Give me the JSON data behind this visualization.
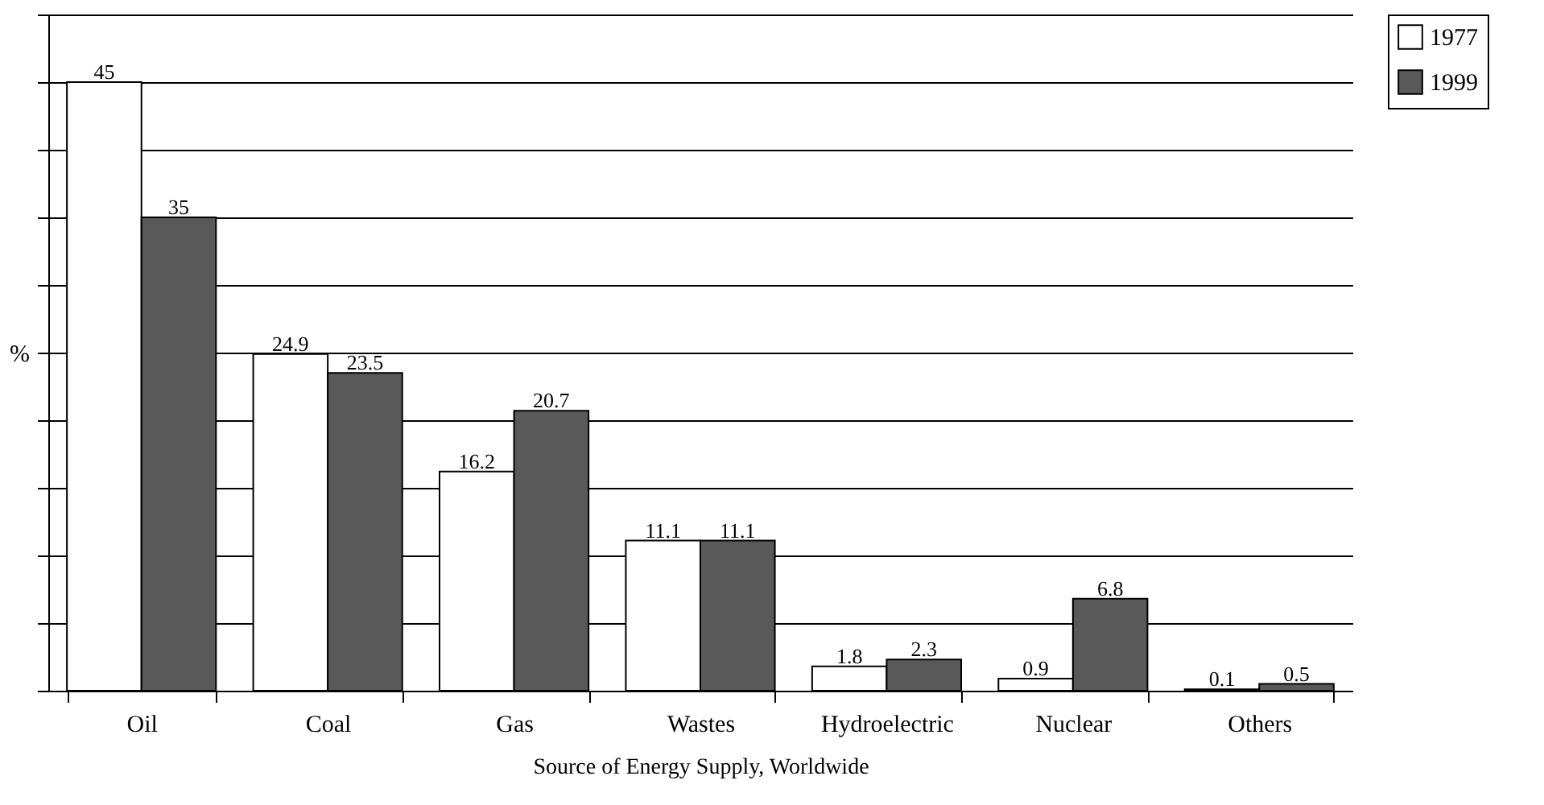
{
  "chart_data": {
    "type": "bar",
    "xlabel": "Source of Energy Supply, Worldwide",
    "ylabel": "%",
    "categories": [
      "Oil",
      "Coal",
      "Gas",
      "Wastes",
      "Hydroelectric",
      "Nuclear",
      "Others"
    ],
    "series": [
      {
        "name": "1977",
        "color": "#ffffff",
        "values": [
          45,
          24.9,
          16.2,
          11.1,
          1.8,
          0.9,
          0.1
        ]
      },
      {
        "name": "1999",
        "color": "#595959",
        "values": [
          35,
          23.5,
          20.7,
          11.1,
          2.3,
          6.8,
          0.5
        ]
      }
    ],
    "ylim": [
      0,
      50
    ],
    "yticks": [
      {
        "value": 0,
        "label": null
      },
      {
        "value": 5,
        "label": null
      },
      {
        "value": 10,
        "label": null
      },
      {
        "value": 15,
        "label": null
      },
      {
        "value": 20,
        "label": null
      },
      {
        "value": 25,
        "label": null
      },
      {
        "value": 30,
        "label": null
      },
      {
        "value": 35,
        "label": null
      },
      {
        "value": 40,
        "label": null
      },
      {
        "value": 45,
        "label": null
      },
      {
        "value": 50,
        "label": null
      }
    ],
    "grid": "y",
    "legend": "right",
    "data_labels": true,
    "tick_labels": "x"
  }
}
